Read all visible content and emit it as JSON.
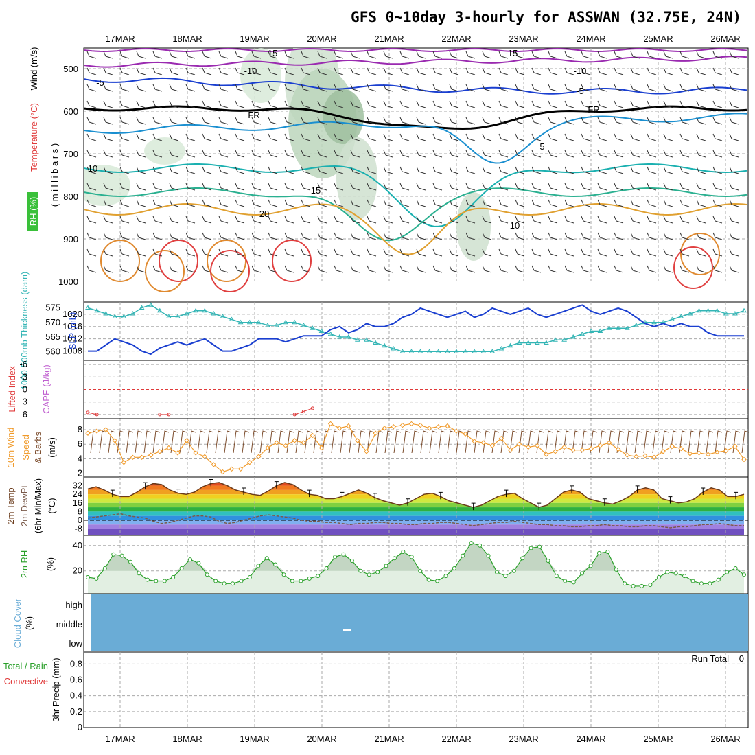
{
  "chart_data": {
    "type": "line",
    "title": "GFS 0~10day 3-hourly for ASSWAN (32.75E, 24N)",
    "date_labels": [
      "17MAR",
      "18MAR",
      "19MAR",
      "20MAR",
      "21MAR",
      "22MAR",
      "23MAR",
      "24MAR",
      "25MAR",
      "26MAR"
    ],
    "colors": {
      "thickness": "#33b5b5",
      "slp": "#1a3fd0",
      "wind": "#f09a2a",
      "barb": "#7a4a2a",
      "rh": "#2aa02a",
      "cloud": "#6aacd6",
      "lifted": "#e03a3a",
      "cape": "#c060d0",
      "temp": "#6a3a1a",
      "dewpt": "#7a5a4a"
    },
    "panels": {
      "upper": {
        "ylabel_wind": "Wind (m/s)",
        "ylabel_temp": "Temperature (°C)",
        "ylabel_rh": "RH (%)",
        "ylabel_p": "( m i l l i b a r s )",
        "yticks": [
          "500",
          "600",
          "700",
          "800",
          "900",
          "1000"
        ],
        "contour_labels": [
          "-15",
          "-10",
          "-5",
          "FR",
          "5",
          "10",
          "15",
          "20"
        ]
      },
      "slp_thk": {
        "ylabel_thk": "1000-500mb Thickness (dam)",
        "ylabel_slp": "SLP (mb)",
        "thk_ticks": [
          "575",
          "570",
          "565",
          "560"
        ],
        "slp_ticks": [
          "1020",
          "1016",
          "1012",
          "1008"
        ],
        "thickness_dam": [
          575,
          574,
          573,
          572,
          572,
          573,
          575,
          576,
          574,
          572,
          572,
          573,
          574,
          574,
          573,
          572,
          571,
          570,
          570,
          570,
          569,
          569,
          570,
          570,
          569,
          568,
          567,
          566,
          565,
          565,
          564,
          564,
          563,
          562,
          561,
          560,
          560,
          560,
          560,
          560,
          560,
          560,
          560,
          560,
          560,
          560,
          561,
          562,
          563,
          563,
          563,
          563,
          564,
          564,
          565,
          566,
          567,
          567,
          568,
          568,
          568,
          569,
          570,
          570,
          570,
          571,
          572,
          573,
          574,
          574,
          574,
          573,
          573,
          574
        ],
        "slp_mb": [
          1008,
          1008,
          1010,
          1012,
          1011,
          1010,
          1008,
          1007,
          1009,
          1010,
          1011,
          1010,
          1011,
          1012,
          1010,
          1008,
          1008,
          1009,
          1010,
          1012,
          1012,
          1012,
          1011,
          1012,
          1013,
          1013,
          1013,
          1015,
          1016,
          1014,
          1015,
          1017,
          1016,
          1016,
          1017,
          1019,
          1020,
          1022,
          1021,
          1020,
          1019,
          1020,
          1021,
          1019,
          1020,
          1022,
          1021,
          1020,
          1021,
          1022,
          1020,
          1019,
          1020,
          1021,
          1022,
          1023,
          1021,
          1020,
          1021,
          1022,
          1021,
          1019,
          1017,
          1016,
          1017,
          1016,
          1017,
          1016,
          1016,
          1014,
          1013,
          1013,
          1013,
          1013
        ]
      },
      "li_cape": {
        "ylabel_li": "Lifted Index",
        "ylabel_cape": "CAPE (J/kg)",
        "yticks": [
          "-6",
          "-3",
          "0",
          "3",
          "6"
        ],
        "lifted_index_segments": [
          {
            "x": [
              0,
              1
            ],
            "y": [
              5.5,
              6
            ]
          },
          {
            "x": [
              8,
              9
            ],
            "y": [
              6,
              6
            ]
          },
          {
            "x": [
              23,
              24,
              25
            ],
            "y": [
              6,
              5.3,
              4.5
            ]
          }
        ]
      },
      "wind10": {
        "ylabel_wind": "10m Wind",
        "ylabel_speed": "Speed",
        "ylabel_barbs": "& Barbs",
        "ylabel_unit": "(m/s)",
        "yticks": [
          "8",
          "6",
          "4",
          "2"
        ],
        "speed_ms": [
          7.5,
          7.8,
          8,
          6.5,
          3.5,
          4.2,
          4.2,
          4.5,
          5,
          5.5,
          4.8,
          6.5,
          4.8,
          4.3,
          3.2,
          2.2,
          2.6,
          2.6,
          3.5,
          4.3,
          5.5,
          6.2,
          5.8,
          6.5,
          6.2,
          7.2,
          5.5,
          8.8,
          8.2,
          8.5,
          6.5,
          5,
          7.5,
          8.2,
          8.4,
          8.6,
          8.8,
          8.6,
          8.2,
          8.4,
          8.5,
          7.8,
          7.4,
          6.4,
          6.2,
          5.8,
          6.8,
          5.2,
          6,
          5.6,
          5.8,
          4.6,
          5,
          5.6,
          5.2,
          5.2,
          5.4,
          5.8,
          6.2,
          5.3,
          4.5,
          4.3,
          4.4,
          4.2,
          5,
          5.7,
          5.4,
          4.7,
          4.8,
          4.6,
          4.9,
          5.1,
          5.7,
          3.9
        ]
      },
      "temp2m": {
        "ylabel_temp": "2m Temp",
        "ylabel_dewpt": "2m DewPt",
        "ylabel_minmax": "(6hr Min/Max)",
        "ylabel_unit": "(°C)",
        "yticks": [
          "32",
          "24",
          "16",
          "8",
          "0",
          "-8"
        ],
        "temp_c": [
          29,
          31,
          28,
          24,
          22,
          22,
          26,
          31,
          34,
          33,
          28,
          25,
          24,
          26,
          31,
          34,
          35,
          32,
          28,
          26,
          24,
          23,
          27,
          32,
          35,
          33,
          28,
          24,
          23,
          20,
          20,
          22,
          25,
          28,
          25,
          21,
          18,
          16,
          14,
          16,
          20,
          24,
          25,
          22,
          18,
          16,
          14,
          12,
          14,
          18,
          22,
          24,
          25,
          20,
          16,
          12,
          14,
          20,
          26,
          28,
          26,
          20,
          18,
          16,
          15,
          18,
          22,
          28,
          30,
          28,
          20,
          18,
          16,
          17,
          20,
          26,
          30,
          28,
          22,
          22,
          24
        ],
        "dewpt_c": [
          2,
          3,
          4,
          5,
          6,
          4,
          3,
          2,
          -1,
          -3,
          -2,
          0,
          2,
          4,
          4,
          3,
          -1,
          -3,
          -2,
          0,
          2,
          4,
          5,
          4,
          3,
          2,
          0,
          -1,
          -1,
          -2,
          -2,
          -3,
          -4,
          -3,
          -3,
          -2,
          -2,
          -3,
          -3,
          -4,
          -4,
          -3,
          -3,
          -2,
          -2,
          -3,
          -4,
          -5,
          -4,
          -3,
          -2,
          -2,
          -1,
          -2,
          -3,
          -4,
          -4,
          -5,
          -5,
          -6,
          -6,
          -5,
          -5,
          -4,
          -5,
          -5,
          -6,
          -6,
          -5,
          -5,
          -6,
          -7,
          -6,
          -6,
          -5,
          -4,
          -4,
          -3,
          -4,
          -5,
          -5
        ]
      },
      "rh2m": {
        "ylabel_rh": "2m RH",
        "ylabel_unit": "(%)",
        "yticks": [
          "40",
          "20"
        ],
        "rh_pct": [
          15,
          14,
          22,
          33,
          32,
          27,
          18,
          13,
          12,
          12,
          15,
          22,
          29,
          26,
          17,
          12,
          10,
          10,
          12,
          15,
          24,
          30,
          25,
          17,
          12,
          12,
          14,
          16,
          22,
          31,
          33,
          28,
          20,
          17,
          19,
          24,
          30,
          35,
          31,
          20,
          13,
          12,
          16,
          22,
          32,
          42,
          40,
          32,
          19,
          16,
          20,
          30,
          38,
          39,
          28,
          16,
          12,
          11,
          18,
          24,
          34,
          35,
          21,
          10,
          8,
          8,
          9,
          15,
          19,
          18,
          16,
          12,
          10,
          10,
          13,
          19,
          22,
          17
        ]
      },
      "cloud": {
        "ylabel_cloud": "Cloud Cover",
        "ylabel_unit": "(%)",
        "levels": [
          "high",
          "middle",
          "low"
        ]
      },
      "precip": {
        "ylabel_total": "Total / Rain",
        "ylabel_conv": "Convective",
        "ylabel_precip": "3hr Precip (mm)",
        "yticks": [
          "0.8",
          "0.6",
          "0.4",
          "0.2",
          "0"
        ],
        "run_total_label": "Run Total = 0"
      }
    }
  }
}
